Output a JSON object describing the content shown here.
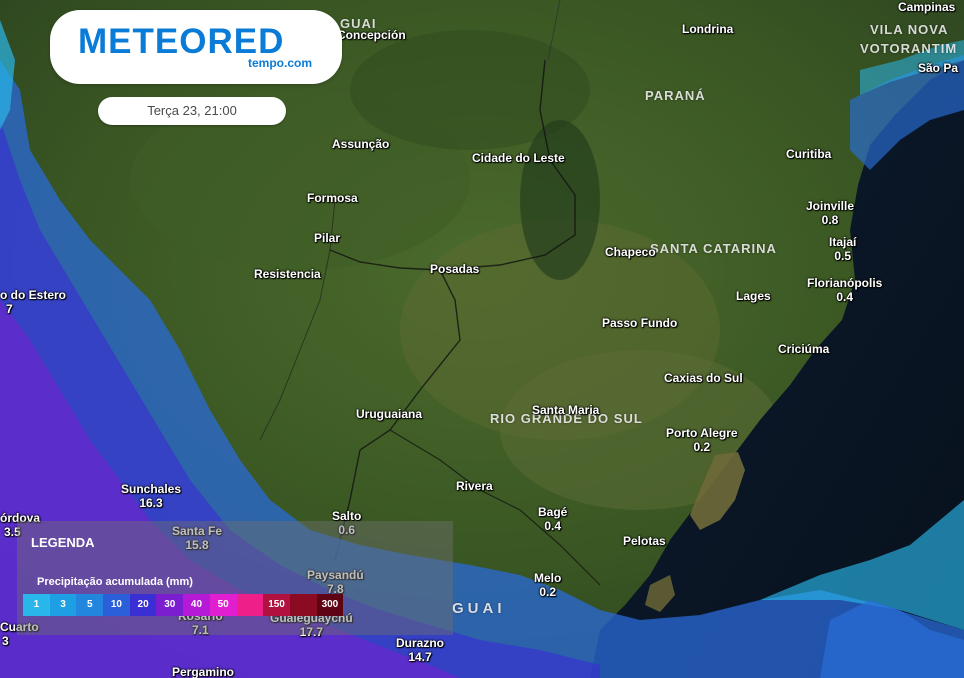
{
  "brand": {
    "name": "METEORED",
    "sub": "tempo.com"
  },
  "date_label": "Terça 23, 21:00",
  "regions": [
    "PARANÁ",
    "SANTA CATARINA",
    "RIO GRANDE DO SUL",
    "VILA NOVA",
    "VOTORANTIM",
    "GUAI",
    "GUAI"
  ],
  "cities": [
    {
      "name": "Concepción",
      "value": ""
    },
    {
      "name": "Londrina",
      "value": ""
    },
    {
      "name": "Campinas",
      "value": ""
    },
    {
      "name": "São Pa",
      "value": ""
    },
    {
      "name": "Assunção",
      "value": ""
    },
    {
      "name": "Cidade do Leste",
      "value": ""
    },
    {
      "name": "Curitiba",
      "value": ""
    },
    {
      "name": "Formosa",
      "value": ""
    },
    {
      "name": "Joinville",
      "value": "0.8"
    },
    {
      "name": "Itajaí",
      "value": "0.5"
    },
    {
      "name": "Pilar",
      "value": ""
    },
    {
      "name": "Chapeco",
      "value": ""
    },
    {
      "name": "Resistencia",
      "value": ""
    },
    {
      "name": "Posadas",
      "value": ""
    },
    {
      "name": "Florianópolis",
      "value": "0.4"
    },
    {
      "name": "Lages",
      "value": ""
    },
    {
      "name": "o do Estero",
      "value": "7"
    },
    {
      "name": "Passo Fundo",
      "value": ""
    },
    {
      "name": "Criciúma",
      "value": ""
    },
    {
      "name": "Caxias do Sul",
      "value": ""
    },
    {
      "name": "Uruguaiana",
      "value": ""
    },
    {
      "name": "Santa Maria",
      "value": ""
    },
    {
      "name": "Porto Alegre",
      "value": "0.2"
    },
    {
      "name": "Sunchales",
      "value": "16.3"
    },
    {
      "name": "Rivera",
      "value": ""
    },
    {
      "name": "Salto",
      "value": "0.6"
    },
    {
      "name": "Bagé",
      "value": "0.4"
    },
    {
      "name": "órdova",
      "value": "3.5"
    },
    {
      "name": "Santa Fe",
      "value": "15.8"
    },
    {
      "name": "Pelotas",
      "value": ""
    },
    {
      "name": "Paysandú",
      "value": "7.8"
    },
    {
      "name": "Melo",
      "value": "0.2"
    },
    {
      "name": "Rosario",
      "value": "7.1"
    },
    {
      "name": "Gualeguaychú",
      "value": "17.7"
    },
    {
      "name": "Cuarto",
      "value": "3"
    },
    {
      "name": "Durazno",
      "value": "14.7"
    },
    {
      "name": "Pergamino",
      "value": ""
    }
  ],
  "legend": {
    "title": "LEGENDA",
    "subtitle": "Precipitação acumulada (mm)",
    "scale": [
      {
        "label": "1",
        "color": "#29b6ea"
      },
      {
        "label": "3",
        "color": "#1e9fe3"
      },
      {
        "label": "5",
        "color": "#2286de"
      },
      {
        "label": "10",
        "color": "#2a5fd9"
      },
      {
        "label": "20",
        "color": "#3a2fd2"
      },
      {
        "label": "30",
        "color": "#7a1ecf"
      },
      {
        "label": "40",
        "color": "#b51bd6"
      },
      {
        "label": "50",
        "color": "#e21fd0"
      },
      {
        "label": "",
        "color": "#ef1f8a"
      },
      {
        "label": "150",
        "color": "#b0113e"
      },
      {
        "label": "",
        "color": "#8a0b22"
      },
      {
        "label": "300",
        "color": "#5e0414"
      }
    ]
  }
}
